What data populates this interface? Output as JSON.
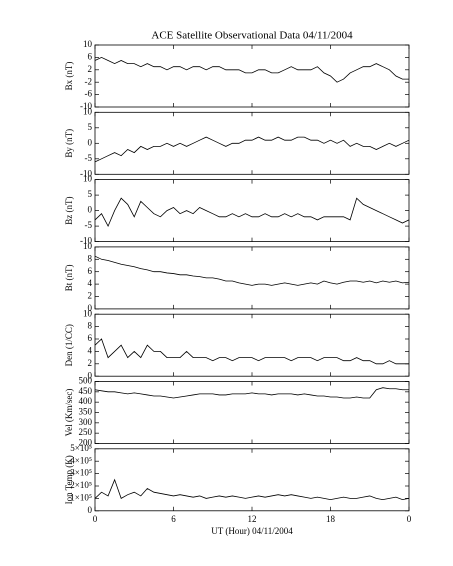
{
  "chart_data": [
    {
      "type": "line",
      "title": "ACE Satellite Observational Data   04/11/2004",
      "ylabel": "Bx (nT)",
      "ylim": [
        -10,
        10
      ],
      "yticks": [
        -10,
        -6,
        -2,
        2,
        6,
        10
      ],
      "color": "#000000",
      "x": [
        0,
        0.5,
        1,
        1.5,
        2,
        2.5,
        3,
        3.5,
        4,
        4.5,
        5,
        5.5,
        6,
        6.5,
        7,
        7.5,
        8,
        8.5,
        9,
        9.5,
        10,
        10.5,
        11,
        11.5,
        12,
        12.5,
        13,
        13.5,
        14,
        14.5,
        15,
        15.5,
        16,
        16.5,
        17,
        17.5,
        18,
        18.5,
        19,
        19.5,
        20,
        20.5,
        21,
        21.5,
        22,
        22.5,
        23,
        23.5,
        24
      ],
      "values": [
        5,
        6,
        5,
        4,
        5,
        4,
        4,
        3,
        4,
        3,
        3,
        2,
        3,
        3,
        2,
        3,
        3,
        2,
        3,
        3,
        2,
        2,
        2,
        1,
        1,
        2,
        2,
        1,
        1,
        2,
        3,
        2,
        2,
        2,
        3,
        1,
        0,
        -2,
        -1,
        1,
        2,
        3,
        3,
        4,
        3,
        2,
        0,
        -1,
        -1
      ]
    },
    {
      "type": "line",
      "ylabel": "By (nT)",
      "ylim": [
        -10,
        10
      ],
      "yticks": [
        -10,
        -5,
        0,
        5,
        10
      ],
      "color": "#000000",
      "x": [
        0,
        0.5,
        1,
        1.5,
        2,
        2.5,
        3,
        3.5,
        4,
        4.5,
        5,
        5.5,
        6,
        6.5,
        7,
        7.5,
        8,
        8.5,
        9,
        9.5,
        10,
        10.5,
        11,
        11.5,
        12,
        12.5,
        13,
        13.5,
        14,
        14.5,
        15,
        15.5,
        16,
        16.5,
        17,
        17.5,
        18,
        18.5,
        19,
        19.5,
        20,
        20.5,
        21,
        21.5,
        22,
        22.5,
        23,
        23.5,
        24
      ],
      "values": [
        -6,
        -5,
        -4,
        -3,
        -4,
        -2,
        -3,
        -1,
        -2,
        -1,
        -1,
        0,
        -1,
        0,
        -1,
        0,
        1,
        2,
        1,
        0,
        -1,
        0,
        0,
        1,
        1,
        2,
        1,
        1,
        2,
        1,
        1,
        2,
        2,
        1,
        1,
        0,
        1,
        0,
        1,
        -1,
        0,
        -1,
        -1,
        -2,
        -1,
        0,
        -1,
        0,
        1
      ]
    },
    {
      "type": "line",
      "ylabel": "Bz (nT)",
      "ylim": [
        -10,
        10
      ],
      "yticks": [
        -10,
        -5,
        0,
        5,
        10
      ],
      "color": "#000000",
      "x": [
        0,
        0.5,
        1,
        1.5,
        2,
        2.5,
        3,
        3.5,
        4,
        4.5,
        5,
        5.5,
        6,
        6.5,
        7,
        7.5,
        8,
        8.5,
        9,
        9.5,
        10,
        10.5,
        11,
        11.5,
        12,
        12.5,
        13,
        13.5,
        14,
        14.5,
        15,
        15.5,
        16,
        16.5,
        17,
        17.5,
        18,
        18.5,
        19,
        19.5,
        20,
        20.5,
        21,
        21.5,
        22,
        22.5,
        23,
        23.5,
        24
      ],
      "values": [
        -3,
        -1,
        -5,
        0,
        4,
        2,
        -2,
        3,
        1,
        -1,
        -2,
        0,
        1,
        -1,
        0,
        -1,
        1,
        0,
        -1,
        -2,
        -2,
        -1,
        -2,
        -1,
        -2,
        -2,
        -1,
        -2,
        -2,
        -1,
        -2,
        -1,
        -2,
        -2,
        -3,
        -2,
        -2,
        -2,
        -2,
        -3,
        4,
        2,
        1,
        0,
        -1,
        -2,
        -3,
        -4,
        -3
      ]
    },
    {
      "type": "line",
      "ylabel": "Bt (nT)",
      "ylim": [
        0,
        10
      ],
      "yticks": [
        0,
        2,
        4,
        6,
        8,
        10
      ],
      "color": "#000000",
      "x": [
        0,
        0.5,
        1,
        1.5,
        2,
        2.5,
        3,
        3.5,
        4,
        4.5,
        5,
        5.5,
        6,
        6.5,
        7,
        7.5,
        8,
        8.5,
        9,
        9.5,
        10,
        10.5,
        11,
        11.5,
        12,
        12.5,
        13,
        13.5,
        14,
        14.5,
        15,
        15.5,
        16,
        16.5,
        17,
        17.5,
        18,
        18.5,
        19,
        19.5,
        20,
        20.5,
        21,
        21.5,
        22,
        22.5,
        23,
        23.5,
        24
      ],
      "values": [
        8.5,
        8,
        7.8,
        7.5,
        7.2,
        7,
        6.8,
        6.5,
        6.3,
        6,
        6,
        5.8,
        5.7,
        5.5,
        5.5,
        5.3,
        5.2,
        5,
        5,
        4.8,
        4.5,
        4.5,
        4.2,
        4,
        3.8,
        4,
        4,
        3.8,
        4,
        4.2,
        4,
        3.8,
        4,
        4.2,
        4,
        4.5,
        4.2,
        4,
        4.3,
        4.5,
        4.5,
        4.3,
        4.5,
        4.2,
        4.5,
        4.3,
        4.5,
        4.2,
        4.3
      ]
    },
    {
      "type": "line",
      "ylabel": "Den (1/CC)",
      "ylim": [
        0,
        10
      ],
      "yticks": [
        0,
        2,
        4,
        6,
        8,
        10
      ],
      "color": "#000000",
      "x": [
        0,
        0.5,
        1,
        1.5,
        2,
        2.5,
        3,
        3.5,
        4,
        4.5,
        5,
        5.5,
        6,
        6.5,
        7,
        7.5,
        8,
        8.5,
        9,
        9.5,
        10,
        10.5,
        11,
        11.5,
        12,
        12.5,
        13,
        13.5,
        14,
        14.5,
        15,
        15.5,
        16,
        16.5,
        17,
        17.5,
        18,
        18.5,
        19,
        19.5,
        20,
        20.5,
        21,
        21.5,
        22,
        22.5,
        23,
        23.5,
        24
      ],
      "values": [
        5,
        6,
        3,
        4,
        5,
        3,
        4,
        3,
        5,
        4,
        4,
        3,
        3,
        3,
        4,
        3,
        3,
        3,
        2.5,
        3,
        3,
        2.5,
        3,
        3,
        3,
        2.5,
        3,
        3,
        3,
        3,
        2.5,
        3,
        3,
        3,
        2.5,
        3,
        3,
        3,
        2.5,
        2.5,
        3,
        2.5,
        2.5,
        2,
        2,
        2.5,
        2,
        2,
        2
      ]
    },
    {
      "type": "line",
      "ylabel": "Vel (Km/sec)",
      "ylim": [
        200,
        500
      ],
      "yticks": [
        200,
        250,
        300,
        350,
        400,
        450,
        500
      ],
      "color": "#000000",
      "x": [
        0,
        0.5,
        1,
        1.5,
        2,
        2.5,
        3,
        3.5,
        4,
        4.5,
        5,
        5.5,
        6,
        6.5,
        7,
        7.5,
        8,
        8.5,
        9,
        9.5,
        10,
        10.5,
        11,
        11.5,
        12,
        12.5,
        13,
        13.5,
        14,
        14.5,
        15,
        15.5,
        16,
        16.5,
        17,
        17.5,
        18,
        18.5,
        19,
        19.5,
        20,
        20.5,
        21,
        21.5,
        22,
        22.5,
        23,
        23.5,
        24
      ],
      "values": [
        460,
        455,
        450,
        450,
        445,
        440,
        445,
        440,
        435,
        430,
        430,
        425,
        420,
        425,
        430,
        435,
        440,
        440,
        440,
        435,
        435,
        440,
        440,
        440,
        445,
        440,
        440,
        435,
        440,
        440,
        440,
        435,
        440,
        435,
        430,
        430,
        425,
        425,
        420,
        420,
        425,
        420,
        420,
        460,
        470,
        465,
        465,
        460,
        460
      ]
    },
    {
      "type": "line",
      "ylabel": "Ion Temp (K)",
      "ylim": [
        0,
        500000
      ],
      "yticks": [
        0,
        {
          "value": 100000,
          "label": "1×10⁵"
        },
        {
          "value": 200000,
          "label": "2×10⁵"
        },
        {
          "value": 300000,
          "label": "3×10⁵"
        },
        {
          "value": 400000,
          "label": "4×10⁵"
        },
        {
          "value": 500000,
          "label": "5×10⁵"
        }
      ],
      "color": "#000000",
      "xlabel": "UT (Hour)   04/11/2004",
      "xlim": [
        0,
        24
      ],
      "xticks": [
        0,
        6,
        12,
        18,
        {
          "value": 24,
          "label": "0"
        }
      ],
      "x": [
        0,
        0.5,
        1,
        1.5,
        2,
        2.5,
        3,
        3.5,
        4,
        4.5,
        5,
        5.5,
        6,
        6.5,
        7,
        7.5,
        8,
        8.5,
        9,
        9.5,
        10,
        10.5,
        11,
        11.5,
        12,
        12.5,
        13,
        13.5,
        14,
        14.5,
        15,
        15.5,
        16,
        16.5,
        17,
        17.5,
        18,
        18.5,
        19,
        19.5,
        20,
        20.5,
        21,
        21.5,
        22,
        22.5,
        23,
        23.5,
        24
      ],
      "values": [
        100000,
        150000,
        120000,
        250000,
        100000,
        130000,
        150000,
        120000,
        180000,
        150000,
        140000,
        130000,
        120000,
        130000,
        120000,
        110000,
        120000,
        100000,
        110000,
        120000,
        110000,
        120000,
        110000,
        100000,
        110000,
        120000,
        110000,
        120000,
        130000,
        120000,
        130000,
        120000,
        110000,
        100000,
        110000,
        100000,
        90000,
        100000,
        110000,
        100000,
        100000,
        110000,
        120000,
        100000,
        90000,
        100000,
        110000,
        90000,
        100000
      ]
    }
  ]
}
